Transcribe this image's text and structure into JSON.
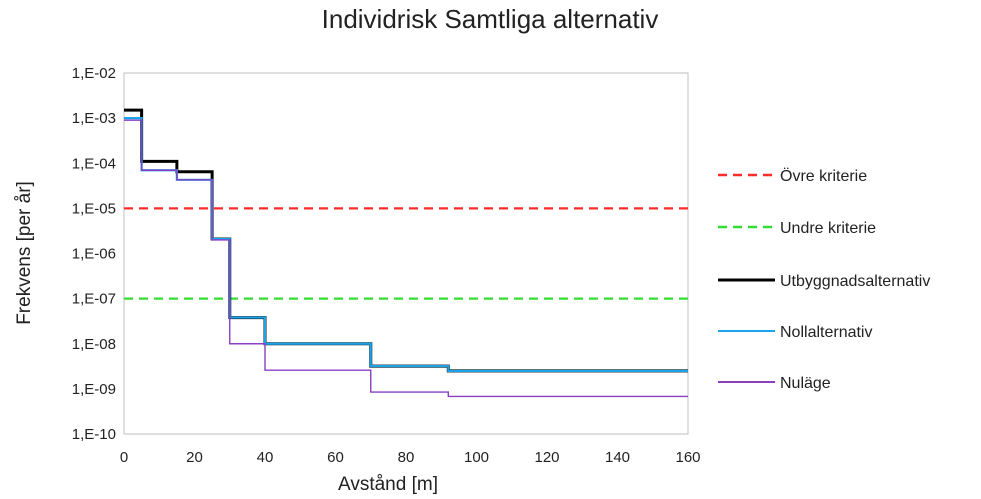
{
  "chart_data": {
    "type": "line",
    "title": "Individrisk Samtliga alternativ",
    "xlabel": "Avstånd [m]",
    "ylabel": "Frekvens [per år]",
    "xlim": [
      0,
      160
    ],
    "ylim": [
      1e-10,
      0.01
    ],
    "yscale": "log",
    "x_ticks": [
      0,
      20,
      40,
      60,
      80,
      100,
      120,
      140,
      160
    ],
    "y_ticks": [
      1e-10,
      1e-09,
      1e-08,
      1e-07,
      1e-06,
      1e-05,
      0.0001,
      0.001,
      0.01
    ],
    "y_tick_labels": [
      "1,E-10",
      "1,E-09",
      "1,E-08",
      "1,E-07",
      "1,E-06",
      "1,E-05",
      "1,E-04",
      "1,E-03",
      "1,E-02"
    ],
    "grid": false,
    "legend_position": "right",
    "series": [
      {
        "name": "Övre kriterie",
        "style": "dashed",
        "color": "#ff2a2a",
        "x": [
          0,
          160
        ],
        "y": [
          1e-05,
          1e-05
        ]
      },
      {
        "name": "Undre kriterie",
        "style": "dashed",
        "color": "#33dd33",
        "x": [
          0,
          160
        ],
        "y": [
          1e-07,
          1e-07
        ]
      },
      {
        "name": "Utbyggnadsalternativ",
        "style": "step",
        "color": "#000000",
        "x": [
          0,
          5,
          15,
          25,
          30,
          40,
          70,
          92,
          160
        ],
        "y": [
          0.0015,
          0.00011,
          6.5e-05,
          2.1e-06,
          3.8e-08,
          1e-08,
          3.2e-09,
          2.5e-09,
          2.5e-09
        ]
      },
      {
        "name": "Nollalternativ",
        "style": "step",
        "color": "#1aa3e8",
        "x": [
          0,
          5,
          15,
          25,
          30,
          40,
          70,
          92,
          160
        ],
        "y": [
          0.001,
          7e-05,
          4.3e-05,
          2.1e-06,
          3.8e-08,
          1e-08,
          3.2e-09,
          2.5e-09,
          2.5e-09
        ]
      },
      {
        "name": "Nuläge",
        "style": "step",
        "color": "#8a3fc4",
        "x": [
          0,
          5,
          15,
          25,
          30,
          40,
          70,
          92,
          160
        ],
        "y": [
          0.0009,
          7e-05,
          4.3e-05,
          2e-06,
          1e-08,
          2.6e-09,
          8.5e-10,
          6.8e-10,
          6.8e-10
        ]
      }
    ]
  }
}
